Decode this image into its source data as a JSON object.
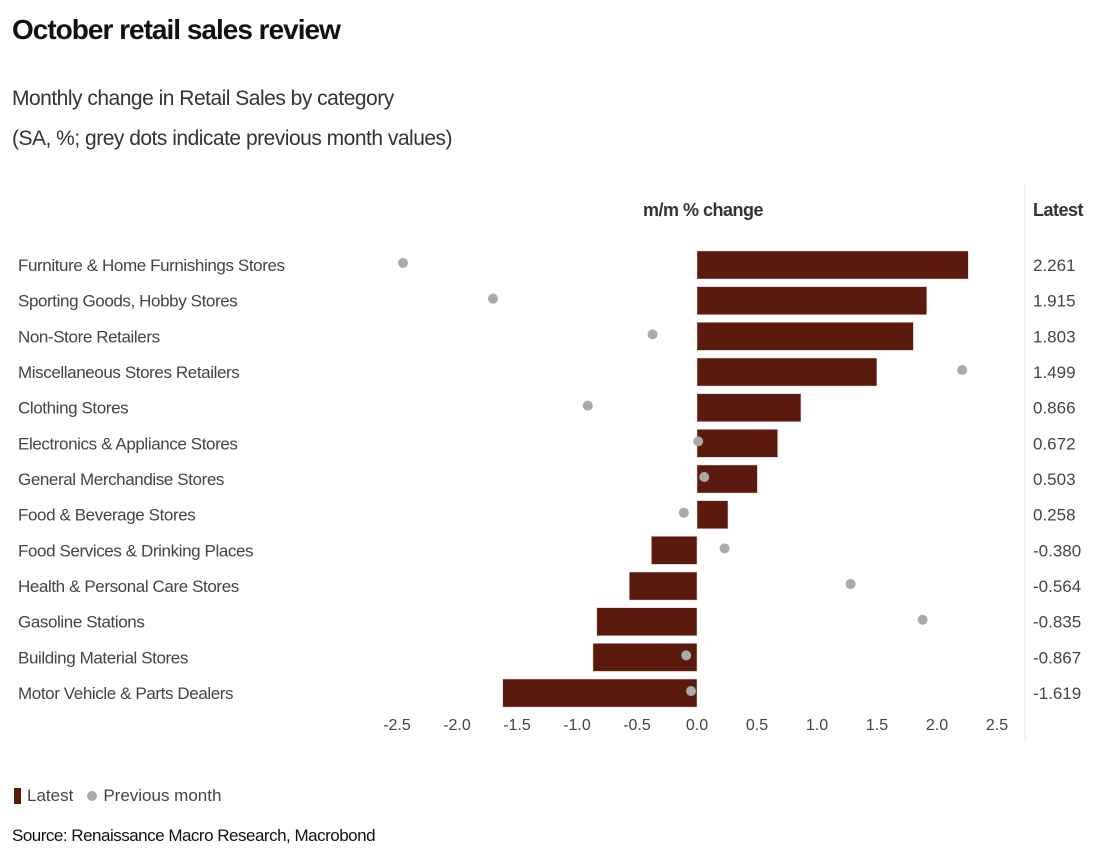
{
  "chart_data": {
    "type": "bar",
    "title": "October retail sales review",
    "subtitle": [
      "Monthly change in Retail Sales by category",
      "(SA, %; grey dots indicate previous month values)"
    ],
    "xlabel": "m/m % change",
    "value_column_header": "Latest",
    "xlim": [
      -2.5,
      2.5
    ],
    "xticks": [
      "-2.5",
      "-2.0",
      "-1.5",
      "-1.0",
      "-0.5",
      "0.0",
      "0.5",
      "1.0",
      "1.5",
      "2.0",
      "2.5"
    ],
    "categories": [
      "Furniture & Home Furnishings Stores",
      "Sporting Goods, Hobby Stores",
      "Non-Store Retailers",
      "Miscellaneous Stores Retailers",
      "Clothing Stores",
      "Electronics & Appliance Stores",
      "General Merchandise Stores",
      "Food & Beverage Stores",
      "Food Services & Drinking Places",
      "Health & Personal Care Stores",
      "Gasoline Stations",
      "Building Material Stores",
      "Motor Vehicle & Parts Dealers"
    ],
    "series": [
      {
        "name": "Latest",
        "type": "bar",
        "color": "#5a1a0e",
        "values": [
          2.261,
          1.915,
          1.803,
          1.499,
          0.866,
          0.672,
          0.503,
          0.258,
          -0.38,
          -0.564,
          -0.835,
          -0.867,
          -1.619
        ],
        "labels": [
          "2.261",
          "1.915",
          "1.803",
          "1.499",
          "0.866",
          "0.672",
          "0.503",
          "0.258",
          "-0.380",
          "-0.564",
          "-0.835",
          "-0.867",
          "-1.619"
        ]
      },
      {
        "name": "Previous month",
        "type": "scatter",
        "color": "#aaaaaa",
        "values": [
          -2.45,
          -1.7,
          -0.37,
          2.21,
          -0.91,
          0.01,
          0.06,
          -0.11,
          0.23,
          1.28,
          1.88,
          -0.09,
          -0.05
        ]
      }
    ],
    "legend": {
      "position": "bottom-left",
      "items": [
        "Latest",
        "Previous month"
      ]
    },
    "source": "Source: Renaissance Macro Research, Macrobond",
    "grid": false
  }
}
